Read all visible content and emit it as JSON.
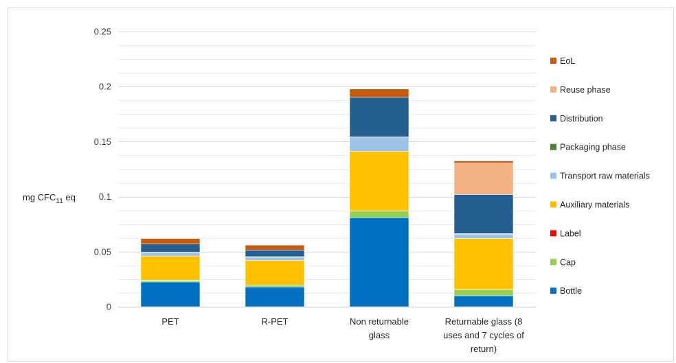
{
  "chart_data": {
    "type": "bar",
    "stacked": true,
    "ylabel": {
      "prefix": "mg CFC",
      "subscript": "11",
      "suffix": " eq"
    },
    "ylim": [
      0,
      0.25
    ],
    "yticks": [
      "0",
      "0.05",
      "0.1",
      "0.15",
      "0.2",
      "0.25"
    ],
    "grid": true,
    "legend_position": "right",
    "categories": [
      [
        "PET"
      ],
      [
        "R-PET"
      ],
      [
        "Non returnable",
        "glass"
      ],
      [
        "Returnable glass (8",
        "uses and 7 cycles of",
        "return)"
      ]
    ],
    "series": [
      {
        "name": "Bottle",
        "color": "#0070c0",
        "values": [
          0.0225,
          0.018,
          0.081,
          0.01
        ]
      },
      {
        "name": "Cap",
        "color": "#92d050",
        "values": [
          0.0015,
          0.0015,
          0.006,
          0.0055
        ]
      },
      {
        "name": "Label",
        "color": "#ff0000",
        "values": [
          0.0002,
          0.0002,
          0.0001,
          0.0002
        ]
      },
      {
        "name": "Auxiliary materials",
        "color": "#ffc000",
        "values": [
          0.0218,
          0.0223,
          0.054,
          0.0463
        ]
      },
      {
        "name": "Transport raw materials",
        "color": "#9dc3e6",
        "values": [
          0.003,
          0.003,
          0.013,
          0.004
        ]
      },
      {
        "name": "Packaging phase",
        "color": "#548235",
        "values": [
          0.0005,
          0.0005,
          0.0002,
          0.0005
        ]
      },
      {
        "name": "Distribution",
        "color": "#255e91",
        "values": [
          0.0075,
          0.006,
          0.036,
          0.0355
        ]
      },
      {
        "name": "Reuse phase",
        "color": "#f4b183",
        "values": [
          0,
          0,
          0,
          0.0285
        ]
      },
      {
        "name": "EoL",
        "color": "#c55a11",
        "values": [
          0.005,
          0.0045,
          0.0075,
          0.002
        ]
      }
    ]
  }
}
